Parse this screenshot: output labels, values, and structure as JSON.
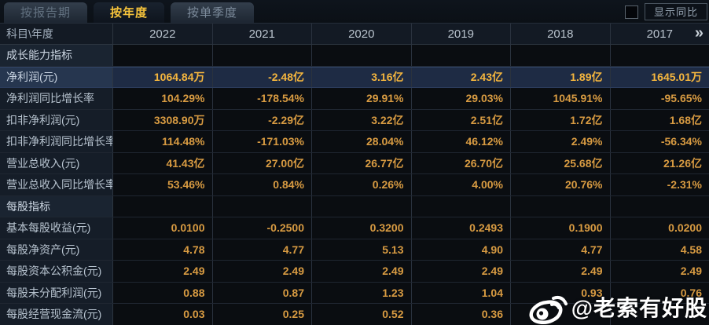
{
  "tabs": [
    {
      "label": "按报告期",
      "active": false
    },
    {
      "label": "按年度",
      "active": true
    },
    {
      "label": "按单季度",
      "active": false
    }
  ],
  "controls": {
    "show_yoy_label": "显示同比",
    "show_yoy_checked": false
  },
  "table": {
    "corner_label": "科目\\年度",
    "years": [
      "2022",
      "2021",
      "2020",
      "2019",
      "2018",
      "2017"
    ],
    "more_years_icon": "»",
    "rows": [
      {
        "type": "section",
        "label": "成长能力指标",
        "values": [
          "",
          "",
          "",
          "",
          "",
          ""
        ]
      },
      {
        "type": "highlight",
        "label": "净利润(元)",
        "values": [
          "1064.84万",
          "-2.48亿",
          "3.16亿",
          "2.43亿",
          "1.89亿",
          "1645.01万"
        ]
      },
      {
        "type": "data",
        "label": "净利润同比增长率",
        "values": [
          "104.29%",
          "-178.54%",
          "29.91%",
          "29.03%",
          "1045.91%",
          "-95.65%"
        ]
      },
      {
        "type": "data",
        "label": "扣非净利润(元)",
        "values": [
          "3308.90万",
          "-2.29亿",
          "3.22亿",
          "2.51亿",
          "1.72亿",
          "1.68亿"
        ]
      },
      {
        "type": "data",
        "label": "扣非净利润同比增长率",
        "values": [
          "114.48%",
          "-171.03%",
          "28.04%",
          "46.12%",
          "2.49%",
          "-56.34%"
        ]
      },
      {
        "type": "data",
        "label": "营业总收入(元)",
        "values": [
          "41.43亿",
          "27.00亿",
          "26.77亿",
          "26.70亿",
          "25.68亿",
          "21.26亿"
        ]
      },
      {
        "type": "data",
        "label": "营业总收入同比增长率",
        "values": [
          "53.46%",
          "0.84%",
          "0.26%",
          "4.00%",
          "20.76%",
          "-2.31%"
        ]
      },
      {
        "type": "section",
        "label": "每股指标",
        "values": [
          "",
          "",
          "",
          "",
          "",
          ""
        ]
      },
      {
        "type": "data",
        "label": "基本每股收益(元)",
        "values": [
          "0.0100",
          "-0.2500",
          "0.3200",
          "0.2493",
          "0.1900",
          "0.0200"
        ]
      },
      {
        "type": "data",
        "label": "每股净资产(元)",
        "values": [
          "4.78",
          "4.77",
          "5.13",
          "4.90",
          "4.77",
          "4.58"
        ]
      },
      {
        "type": "data",
        "label": "每股资本公积金(元)",
        "values": [
          "2.49",
          "2.49",
          "2.49",
          "2.49",
          "2.49",
          "2.49"
        ]
      },
      {
        "type": "data",
        "label": "每股未分配利润(元)",
        "values": [
          "0.88",
          "0.87",
          "1.23",
          "1.04",
          "0.93",
          "0.76"
        ]
      },
      {
        "type": "data",
        "label": "每股经营现金流(元)",
        "values": [
          "0.03",
          "0.25",
          "0.52",
          "0.36",
          "",
          ""
        ]
      }
    ]
  },
  "watermark": {
    "icon": "weibo-icon",
    "text": "@老索有好股"
  },
  "colors": {
    "active_tab_text": "#f5c33b",
    "value_text": "#d89b42",
    "highlight_value_text": "#f5b63e",
    "highlight_row_bg": "#1e2b44",
    "label_column_bg": "#151d28",
    "cell_bg": "#0a0d11"
  }
}
